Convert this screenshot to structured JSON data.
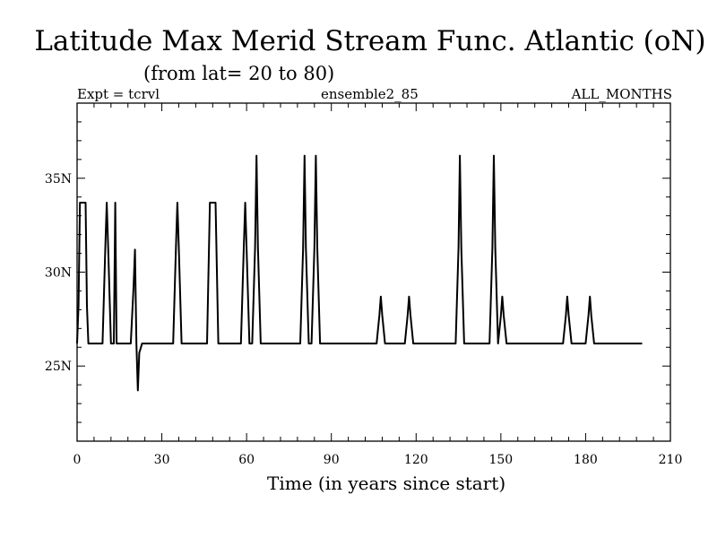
{
  "header": {
    "title": "Latitude Max Merid Stream Func. Atlantic (oN)",
    "subtitle": "(from lat= 20 to 80)",
    "left_note": "Expt = tcrvl",
    "center_note": "ensemble2_85",
    "right_note": "ALL_MONTHS"
  },
  "chart_data": {
    "type": "line",
    "title": "Latitude Max Merid Stream Func. Atlantic (oN)",
    "subtitle": "(from lat= 20 to 80)",
    "xlabel": "Time (in years since start)",
    "ylabel": "",
    "xlim": [
      0,
      210
    ],
    "ylim": [
      21,
      39
    ],
    "x_ticks": [
      0,
      30,
      60,
      90,
      120,
      150,
      180,
      210
    ],
    "x_tick_labels": [
      "0",
      "30",
      "60",
      "90",
      "120",
      "150",
      "180",
      "210"
    ],
    "y_ticks": [
      25,
      30,
      35
    ],
    "y_tick_labels": [
      "25N",
      "30N",
      "35N"
    ],
    "grid": false,
    "color": "#000000",
    "series": [
      {
        "x": [
          0,
          0.5,
          1,
          2,
          3,
          3.5,
          4,
          5,
          9,
          10,
          10.5,
          11,
          12,
          13,
          13.5,
          14,
          15,
          19,
          20,
          20.5,
          21,
          21.5,
          22,
          23,
          34,
          35,
          35.5,
          36,
          37,
          46,
          47,
          48,
          49,
          50,
          58,
          59,
          59.5,
          60,
          61,
          62,
          63,
          63.5,
          64,
          65,
          79,
          80,
          80.5,
          81,
          82,
          83,
          84,
          84.5,
          85,
          86,
          106,
          107,
          107.5,
          108,
          109,
          116,
          117,
          117.5,
          118,
          119,
          134,
          135,
          135.5,
          136,
          137,
          146,
          147,
          147.5,
          148,
          149,
          150,
          150.5,
          151,
          152,
          172,
          173,
          173.5,
          174,
          175,
          180,
          181,
          181.5,
          182,
          183,
          200
        ],
        "y": [
          26.2,
          28.2,
          33.7,
          33.7,
          33.7,
          28.2,
          26.2,
          26.2,
          26.2,
          31.3,
          33.7,
          31.3,
          26.2,
          26.2,
          33.7,
          26.2,
          26.2,
          26.2,
          29.2,
          31.2,
          26.2,
          23.7,
          25.7,
          26.2,
          26.2,
          31.3,
          33.7,
          31.3,
          26.2,
          26.2,
          33.7,
          33.7,
          33.7,
          26.2,
          26.2,
          31.3,
          33.7,
          31.3,
          26.2,
          26.2,
          31.3,
          36.2,
          31.3,
          26.2,
          26.2,
          31.3,
          36.2,
          31.3,
          26.2,
          26.2,
          31.3,
          36.2,
          31.3,
          26.2,
          26.2,
          27.7,
          28.7,
          27.7,
          26.2,
          26.2,
          27.7,
          28.7,
          27.7,
          26.2,
          26.2,
          31.3,
          36.2,
          31.3,
          26.2,
          26.2,
          31.3,
          36.2,
          31.3,
          26.2,
          27.7,
          28.7,
          27.7,
          26.2,
          26.2,
          27.7,
          28.7,
          27.7,
          26.2,
          26.2,
          27.7,
          28.7,
          27.7,
          26.2,
          26.2
        ]
      }
    ]
  }
}
